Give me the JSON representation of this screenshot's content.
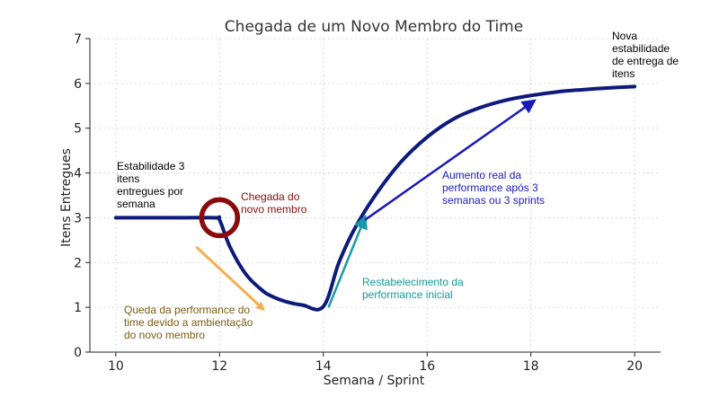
{
  "chart_data": {
    "type": "line",
    "title": "Chegada de um Novo Membro do Time",
    "xlabel": "Semana / Sprint",
    "ylabel": "Itens Entregues",
    "xlim": [
      9.5,
      20.5
    ],
    "ylim": [
      0,
      7
    ],
    "xticks": [
      "10",
      "12",
      "14",
      "16",
      "18",
      "20"
    ],
    "yticks": [
      "0",
      "1",
      "2",
      "3",
      "4",
      "5",
      "6",
      "7"
    ],
    "grid": true,
    "series": [
      {
        "color": "#0d1a7a",
        "x": [
          10,
          11,
          11.9,
          12,
          12.2,
          12.5,
          12.8,
          13.0,
          13.3,
          13.6,
          14.0,
          14.3,
          14.6,
          15.0,
          15.5,
          16.0,
          16.5,
          17.0,
          17.5,
          18.0,
          18.5,
          19.0,
          19.5,
          20.0
        ],
        "y": [
          3.0,
          3.0,
          3.0,
          2.95,
          2.35,
          1.75,
          1.4,
          1.25,
          1.12,
          1.05,
          1.02,
          2.0,
          2.75,
          3.5,
          4.25,
          4.8,
          5.2,
          5.45,
          5.62,
          5.73,
          5.81,
          5.86,
          5.9,
          5.93
        ]
      }
    ],
    "annotations": [
      {
        "text": [
          "Estabilidade 3",
          "itens",
          "entregues por",
          "semana"
        ],
        "color": "#000000"
      },
      {
        "text": [
          "Chegada do",
          "novo membro"
        ],
        "color": "#8b0a0a"
      },
      {
        "text": [
          "Queda da performance do",
          "time devido a ambientação",
          "do novo membro"
        ],
        "color": "#7a5c12"
      },
      {
        "text": [
          "Restabelecimento da",
          "performance inicial"
        ],
        "color": "#119a9a"
      },
      {
        "text": [
          "Aumento real da",
          "performance após 3",
          "semanas ou 3 sprints"
        ],
        "color": "#1a1ab8"
      },
      {
        "text": [
          "Nova",
          "estabilidade",
          "de entrega de",
          "itens"
        ],
        "color": "#000000"
      }
    ],
    "markers": {
      "arrival_circle": {
        "x": 12,
        "y": 3.0,
        "color": "#8b0a0a"
      },
      "drop_arrow": {
        "from": [
          11.55,
          2.35
        ],
        "to": [
          12.85,
          0.95
        ],
        "color": "#f6ad4f"
      },
      "recovery_arrow": {
        "from": [
          14.1,
          1.0
        ],
        "to": [
          14.8,
          3.0
        ],
        "color": "#1a9aa6"
      },
      "growth_arrow": {
        "from": [
          14.8,
          2.95
        ],
        "to": [
          18.05,
          5.6
        ],
        "color": "#1a1ab8"
      }
    }
  }
}
